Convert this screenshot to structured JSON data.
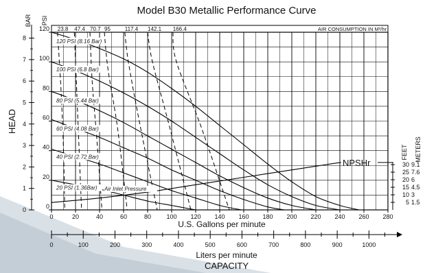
{
  "chart_data": {
    "type": "line",
    "title": "Model B30 Metallic Performance Curve",
    "xlabel": "U.S. Gallons per minute",
    "x2label": "Liters per minute",
    "bottom_label": "CAPACITY",
    "ylabel": "HEAD",
    "left_unit_bar": "BAR",
    "left_unit_psi": "PSI",
    "right_unit_feet": "FEET",
    "right_unit_meters": "METERS",
    "air_consumption_label": "AIR CONSUMPTION IN M³/hr",
    "air_inlet_label": "Air Inlet Pressure",
    "npsh_label": "NPSHr",
    "xlim": [
      0,
      280
    ],
    "ylim": [
      0,
      120
    ],
    "x_ticks": [
      0,
      20,
      40,
      60,
      80,
      100,
      120,
      140,
      160,
      180,
      200,
      220,
      240,
      260,
      280
    ],
    "psi_ticks": [
      0,
      20,
      40,
      60,
      80,
      100,
      120
    ],
    "bar_ticks": [
      0,
      1,
      2,
      3,
      4,
      5,
      6,
      7,
      8
    ],
    "lpm_ticks": [
      0,
      100,
      200,
      300,
      400,
      500,
      600,
      700,
      800,
      900,
      1000
    ],
    "feet_ticks": [
      5,
      10,
      15,
      20,
      25,
      30
    ],
    "meter_ticks": [
      "1.5",
      "3",
      "4.5",
      "6",
      "7.6",
      "9.1"
    ],
    "air_consumption": [
      {
        "value": "23.8",
        "gpm": 5
      },
      {
        "value": "47.4",
        "gpm": 19
      },
      {
        "value": "70.7",
        "gpm": 32
      },
      {
        "value": "95",
        "gpm": 44
      },
      {
        "value": "117.4",
        "gpm": 61
      },
      {
        "value": "142.1",
        "gpm": 80
      },
      {
        "value": "166.4",
        "gpm": 101
      }
    ],
    "series": [
      {
        "name": "120 PSI (8.16 Bar)",
        "values": [
          [
            0,
            120
          ],
          [
            20,
            115
          ],
          [
            40,
            109
          ],
          [
            60,
            102
          ],
          [
            80,
            93
          ],
          [
            100,
            82
          ],
          [
            120,
            70
          ],
          [
            140,
            57
          ],
          [
            160,
            44
          ],
          [
            180,
            31
          ],
          [
            200,
            19
          ],
          [
            220,
            9
          ],
          [
            240,
            3
          ],
          [
            256,
            0
          ]
        ]
      },
      {
        "name": "100 PSI (6.8 Bar)",
        "values": [
          [
            0,
            100
          ],
          [
            20,
            94
          ],
          [
            40,
            87
          ],
          [
            60,
            79
          ],
          [
            80,
            70
          ],
          [
            100,
            60
          ],
          [
            120,
            49
          ],
          [
            140,
            38
          ],
          [
            160,
            27
          ],
          [
            180,
            17
          ],
          [
            200,
            9
          ],
          [
            220,
            3
          ],
          [
            240,
            0
          ]
        ]
      },
      {
        "name": "80 PSI (5.44 Bar)",
        "values": [
          [
            0,
            80
          ],
          [
            20,
            74
          ],
          [
            40,
            67
          ],
          [
            60,
            59
          ],
          [
            80,
            50
          ],
          [
            100,
            41
          ],
          [
            120,
            32
          ],
          [
            140,
            23
          ],
          [
            160,
            15
          ],
          [
            180,
            8
          ],
          [
            200,
            3
          ],
          [
            220,
            0
          ]
        ]
      },
      {
        "name": "60 PSI (4.08 Bar)",
        "values": [
          [
            0,
            61
          ],
          [
            20,
            55
          ],
          [
            40,
            49
          ],
          [
            60,
            42
          ],
          [
            80,
            35
          ],
          [
            100,
            27
          ],
          [
            120,
            20
          ],
          [
            140,
            13
          ],
          [
            160,
            7
          ],
          [
            180,
            2
          ],
          [
            194,
            0
          ]
        ]
      },
      {
        "name": "40 PSI (2.72 Bar)",
        "values": [
          [
            0,
            41
          ],
          [
            20,
            36
          ],
          [
            40,
            31
          ],
          [
            60,
            25
          ],
          [
            80,
            19
          ],
          [
            100,
            13
          ],
          [
            120,
            8
          ],
          [
            140,
            3
          ],
          [
            158,
            0
          ]
        ]
      },
      {
        "name": "20 PSI (1.36Bar)",
        "values": [
          [
            0,
            20
          ],
          [
            20,
            17
          ],
          [
            40,
            14
          ],
          [
            60,
            10
          ],
          [
            80,
            6
          ],
          [
            100,
            3
          ],
          [
            120,
            0
          ]
        ]
      }
    ],
    "air_curves": [
      {
        "value": "23.8",
        "values": [
          [
            5,
            120
          ],
          [
            8,
            80
          ],
          [
            10,
            40
          ],
          [
            11,
            0
          ]
        ]
      },
      {
        "value": "47.4",
        "values": [
          [
            19,
            120
          ],
          [
            21,
            80
          ],
          [
            23,
            40
          ],
          [
            25,
            0
          ]
        ]
      },
      {
        "value": "70.7",
        "values": [
          [
            32,
            120
          ],
          [
            34,
            85
          ],
          [
            38,
            45
          ],
          [
            42,
            0
          ]
        ]
      },
      {
        "value": "95",
        "values": [
          [
            44,
            120
          ],
          [
            47,
            95
          ],
          [
            55,
            55
          ],
          [
            63,
            0
          ]
        ]
      },
      {
        "value": "117.4",
        "values": [
          [
            61,
            120
          ],
          [
            64,
            100
          ],
          [
            73,
            60
          ],
          [
            88,
            0
          ]
        ]
      },
      {
        "value": "142.1",
        "values": [
          [
            80,
            120
          ],
          [
            84,
            100
          ],
          [
            97,
            60
          ],
          [
            116,
            0
          ]
        ]
      },
      {
        "value": "166.4",
        "values": [
          [
            101,
            120
          ],
          [
            104,
            100
          ],
          [
            125,
            55
          ],
          [
            148,
            0
          ]
        ]
      }
    ],
    "npshr_curve": [
      [
        0,
        5
      ],
      [
        40,
        8
      ],
      [
        80,
        12
      ],
      [
        120,
        17
      ],
      [
        160,
        22
      ],
      [
        200,
        27
      ],
      [
        240,
        32
      ]
    ],
    "grid": true
  }
}
